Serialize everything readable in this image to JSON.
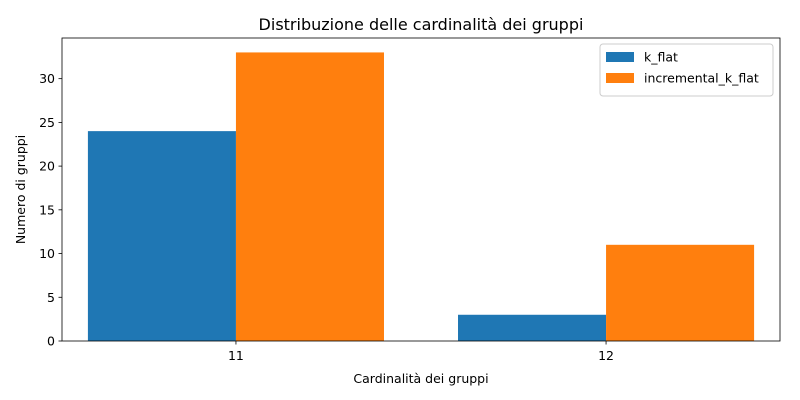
{
  "chart_data": {
    "type": "bar",
    "title": "Distribuzione delle cardinalità dei gruppi",
    "xlabel": "Cardinalità dei gruppi",
    "ylabel": "Numero di gruppi",
    "categories": [
      "11",
      "12"
    ],
    "series": [
      {
        "name": "k_flat",
        "values": [
          24,
          3
        ],
        "color": "#1f77b4"
      },
      {
        "name": "incremental_k_flat",
        "values": [
          33,
          11
        ],
        "color": "#ff7f0e"
      }
    ],
    "ylim": [
      0,
      34.65
    ],
    "yticks": [
      0,
      5,
      10,
      15,
      20,
      25,
      30
    ],
    "grid": false,
    "legend_position": "top-right"
  }
}
